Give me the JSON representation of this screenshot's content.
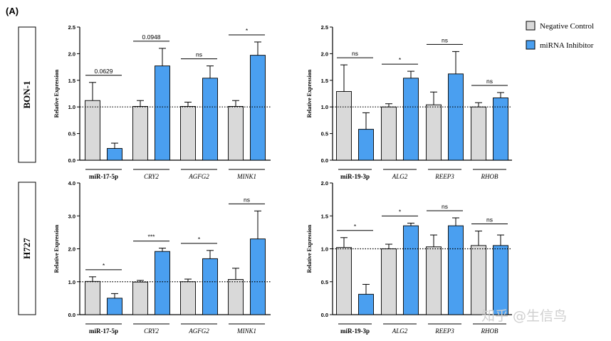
{
  "panel_label": "(A)",
  "row_labels": [
    "BON-1",
    "H727"
  ],
  "legend": {
    "items": [
      {
        "label": "Negative Control",
        "color": "#d9d9d9"
      },
      {
        "label": "miRNA Inhibitor",
        "color": "#4a9ff0"
      }
    ]
  },
  "watermark": "知乎 @生信鸟",
  "chart_data": [
    {
      "id": "bon1-mir17",
      "type": "bar",
      "ylabel": "Relative Expression",
      "ylim": [
        0,
        2.5
      ],
      "yticks": [
        "0.0",
        "0.5",
        "1.0",
        "1.5",
        "2.0",
        "2.5"
      ],
      "reference_line": 1.0,
      "categories": [
        {
          "label": "miR-17-5p",
          "style": "bold"
        },
        {
          "label": "CRY2",
          "style": "italic"
        },
        {
          "label": "AGFG2",
          "style": "italic"
        },
        {
          "label": "MINK1",
          "style": "italic"
        }
      ],
      "series": [
        {
          "name": "Negative Control",
          "values": [
            1.12,
            1.01,
            1.01,
            1.01
          ],
          "errors": [
            0.34,
            0.11,
            0.08,
            0.11
          ]
        },
        {
          "name": "miRNA Inhibitor",
          "values": [
            0.22,
            1.77,
            1.54,
            1.97
          ],
          "errors": [
            0.1,
            0.33,
            0.23,
            0.25
          ]
        }
      ],
      "significance": [
        "0.0629",
        "0.0948",
        "ns",
        "*"
      ]
    },
    {
      "id": "bon1-mir19",
      "type": "bar",
      "ylabel": "Relative Expression",
      "ylim": [
        0,
        2.5
      ],
      "yticks": [
        "0.0",
        "0.5",
        "1.0",
        "1.5",
        "2.0",
        "2.5"
      ],
      "reference_line": 1.0,
      "categories": [
        {
          "label": "miR-19-3p",
          "style": "bold"
        },
        {
          "label": "ALG2",
          "style": "italic"
        },
        {
          "label": "REEP3",
          "style": "italic"
        },
        {
          "label": "RHOB",
          "style": "italic"
        }
      ],
      "series": [
        {
          "name": "Negative Control",
          "values": [
            1.29,
            1.0,
            1.04,
            1.0
          ],
          "errors": [
            0.5,
            0.06,
            0.24,
            0.08
          ]
        },
        {
          "name": "miRNA Inhibitor",
          "values": [
            0.58,
            1.54,
            1.62,
            1.17
          ],
          "errors": [
            0.31,
            0.13,
            0.42,
            0.1
          ]
        }
      ],
      "significance": [
        "ns",
        "*",
        "ns",
        "ns"
      ]
    },
    {
      "id": "h727-mir17",
      "type": "bar",
      "ylabel": "Relative Expression",
      "ylim": [
        0,
        4.0
      ],
      "yticks": [
        "0.0",
        "1.0",
        "2.0",
        "3.0",
        "4.0"
      ],
      "reference_line": 1.0,
      "categories": [
        {
          "label": "miR-17-5p",
          "style": "bold"
        },
        {
          "label": "CRY2",
          "style": "italic"
        },
        {
          "label": "AGFG2",
          "style": "italic"
        },
        {
          "label": "MINK1",
          "style": "italic"
        }
      ],
      "series": [
        {
          "name": "Negative Control",
          "values": [
            1.01,
            0.99,
            1.0,
            1.07
          ],
          "errors": [
            0.14,
            0.05,
            0.08,
            0.34
          ]
        },
        {
          "name": "miRNA Inhibitor",
          "values": [
            0.5,
            1.92,
            1.7,
            2.3
          ],
          "errors": [
            0.14,
            0.1,
            0.25,
            0.85
          ]
        }
      ],
      "significance": [
        "*",
        "***",
        "*",
        "ns"
      ]
    },
    {
      "id": "h727-mir19",
      "type": "bar",
      "ylabel": "Relative Expression",
      "ylim": [
        0,
        2.0
      ],
      "yticks": [
        "0.0",
        "0.5",
        "1.0",
        "1.5",
        "2.0"
      ],
      "reference_line": 1.0,
      "categories": [
        {
          "label": "miR-19-3p",
          "style": "bold"
        },
        {
          "label": "ALG2",
          "style": "italic"
        },
        {
          "label": "REEP3",
          "style": "italic"
        },
        {
          "label": "RHOB",
          "style": "italic"
        }
      ],
      "series": [
        {
          "name": "Negative Control",
          "values": [
            1.02,
            1.0,
            1.03,
            1.05
          ],
          "errors": [
            0.15,
            0.07,
            0.18,
            0.22
          ]
        },
        {
          "name": "miRNA Inhibitor",
          "values": [
            0.31,
            1.35,
            1.35,
            1.05
          ],
          "errors": [
            0.15,
            0.04,
            0.12,
            0.16
          ]
        }
      ],
      "significance": [
        "*",
        "*",
        "ns",
        "ns"
      ]
    }
  ]
}
